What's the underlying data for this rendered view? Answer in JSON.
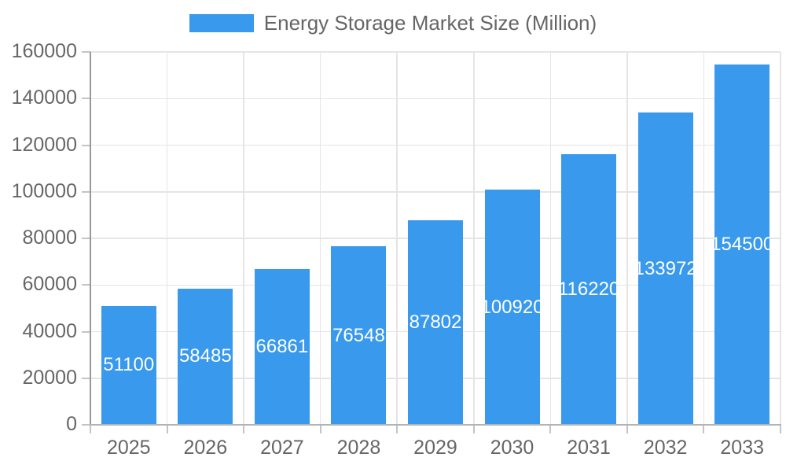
{
  "chart_data": {
    "type": "bar",
    "title": "Energy Storage Market Size (Million)",
    "legend_position": "top",
    "categories": [
      "2025",
      "2026",
      "2027",
      "2028",
      "2029",
      "2030",
      "2031",
      "2032",
      "2033"
    ],
    "values": [
      51100,
      58485,
      66861,
      76548,
      87802,
      100920,
      116220,
      133972,
      154500
    ],
    "xlabel": "",
    "ylabel": "",
    "ylim": [
      0,
      160000
    ],
    "yticks": [
      0,
      20000,
      40000,
      60000,
      80000,
      100000,
      120000,
      140000,
      160000
    ],
    "grid": true,
    "bar_labels_visible": true,
    "colors": {
      "bar": "#3999EC",
      "bar_label": "#FFFFFF",
      "axis_text": "#666666",
      "grid": "#E5E5E5",
      "tick": "#C4C4C4",
      "y_axis_line": "#999999",
      "x_axis_line": "#B3B3B3",
      "background": "#FFFFFF"
    }
  }
}
